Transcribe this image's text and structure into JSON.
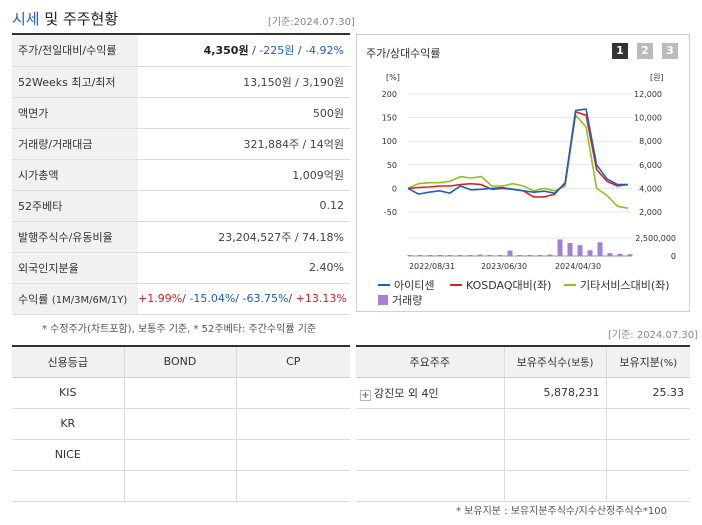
{
  "header": {
    "title_blue": "시세",
    "title_rest": " 및 주주현황",
    "date": "[기준:2024.07.30]"
  },
  "price_table": {
    "rows": [
      {
        "label": "주가/전일대비/수익률"
      },
      {
        "label": "52Weeks 최고/최저",
        "value": "13,150원 / 3,190원"
      },
      {
        "label": "액면가",
        "value": "500원"
      },
      {
        "label": "거래량/거래대금",
        "value": "321,884주 / 14억원"
      },
      {
        "label": "시가총액",
        "value": "1,009억원"
      },
      {
        "label": "52주베타",
        "value": "0.12"
      },
      {
        "label": "발행주식수/유동비율",
        "value": "23,204,527주 / 74.18%"
      },
      {
        "label": "외국인지분율",
        "value": "2.40%"
      },
      {
        "label": "수익률",
        "label_sub": "(1M/3M/6M/1Y)"
      }
    ],
    "price": "4,350원",
    "change": "-225원",
    "change_pct": "-4.92%",
    "sep": " / ",
    "returns": [
      "+1.99%",
      "-15.04%",
      "-63.75%",
      "+13.13%"
    ],
    "returns_sep": "/ "
  },
  "note1": "* 수정주가(차트포함), 보통주 기준, * 52주베타: 주간수익률 기준",
  "chart": {
    "title": "주가/상대수익률",
    "pages": [
      "1",
      "2",
      "3"
    ],
    "left_unit": "[%]",
    "right_unit": "[원]",
    "colors": {
      "stock": "#1f5fbf",
      "kosdaq": "#e02020",
      "sector": "#8dc21f",
      "volume": "#a47fd6"
    }
  },
  "chart_data": {
    "type": "line",
    "x_ticks": [
      "2022/08/31",
      "2023/06/30",
      "2024/04/30"
    ],
    "left_axis": {
      "ticks": [
        "200",
        "150",
        "100",
        "50",
        "0",
        "-50"
      ],
      "range": [
        -50,
        200
      ]
    },
    "right_axis": {
      "ticks": [
        "12,000",
        "10,000",
        "8,000",
        "6,000",
        "4,000",
        "2,000"
      ],
      "range": [
        2000,
        12000
      ]
    },
    "volume_axis": {
      "ticks": [
        "2,500,000",
        "0"
      ],
      "range": [
        0,
        2500000
      ]
    },
    "series": [
      {
        "name": "아이티센",
        "values": [
          0,
          -12,
          -8,
          -5,
          -10,
          5,
          -3,
          -2,
          0,
          2,
          -2,
          -5,
          -8,
          -6,
          -10,
          10,
          165,
          168,
          50,
          20,
          8,
          8
        ]
      },
      {
        "name": "KOSDAQ대비(좌)",
        "values": [
          0,
          2,
          3,
          5,
          5,
          8,
          10,
          8,
          -2,
          0,
          -2,
          -5,
          -18,
          -18,
          -12,
          12,
          162,
          155,
          40,
          15,
          5,
          8
        ]
      },
      {
        "name": "기타서비스대비(좌)",
        "values": [
          0,
          10,
          12,
          12,
          15,
          25,
          22,
          25,
          5,
          5,
          10,
          5,
          -5,
          0,
          -5,
          5,
          155,
          130,
          0,
          -15,
          -38,
          -42
        ]
      }
    ],
    "volume": {
      "name": "거래량",
      "values": [
        40000,
        30000,
        50000,
        60000,
        80000,
        120000,
        90000,
        200000,
        150000,
        120000,
        750000,
        100000,
        150000,
        80000,
        200000,
        2300000,
        1800000,
        1500000,
        800000,
        1900000,
        400000,
        300000,
        250000
      ]
    }
  },
  "note2": "[기준: 2024.07.30]",
  "credit": {
    "headers": [
      "신용등급",
      "BOND",
      "CP"
    ],
    "rows": [
      "KIS",
      "KR",
      "NICE",
      ""
    ]
  },
  "holders": {
    "headers": [
      "주요주주",
      "보유주식수",
      "(보통)",
      "보유지분",
      "(%)"
    ],
    "rows": [
      {
        "name": "강진모 외 4인",
        "shares": "5,878,231",
        "pct": "25.33"
      }
    ],
    "plus": "+"
  },
  "note3": "* 보유지분 : 보유지분주식수/지수산정주식수*100"
}
